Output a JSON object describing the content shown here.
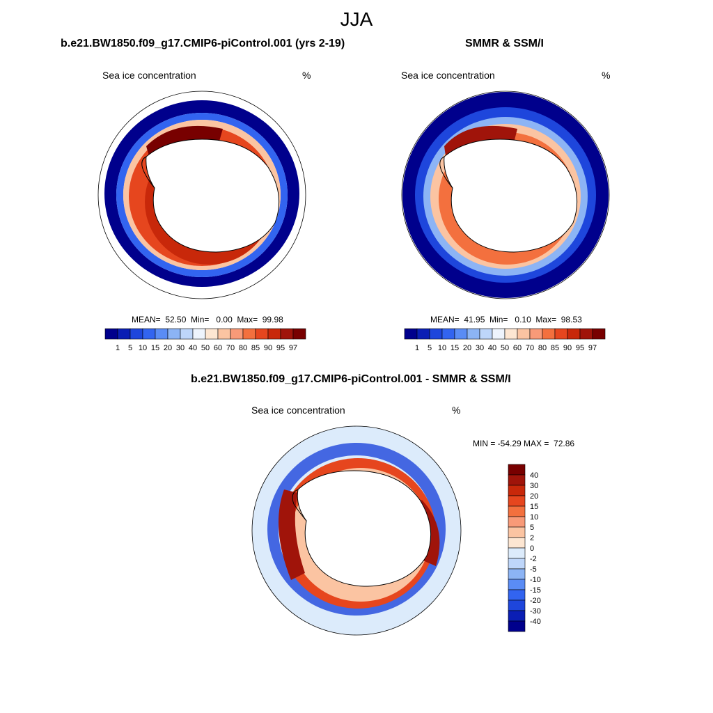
{
  "figure": {
    "season": "JJA"
  },
  "panels": [
    {
      "title": "b.e21.BW1850.f09_g17.CMIP6-piControl.001 (yrs 2-19)",
      "variable": "Sea ice concentration",
      "units": "%",
      "stats": "MEAN=  52.50  Min=   0.00  Max=  99.98"
    },
    {
      "title": "SMMR & SSM/I",
      "variable": "Sea ice concentration",
      "units": "%",
      "stats": "MEAN=  41.95  Min=   0.10  Max=  98.53"
    },
    {
      "title": "b.e21.BW1850.f09_g17.CMIP6-piControl.001 - SMMR & SSM/I",
      "variable": "Sea ice concentration",
      "units": "%",
      "stats": "MIN = -54.29 MAX =  72.86"
    }
  ],
  "colorbars": {
    "concentration": {
      "levels": [
        "1",
        "5",
        "10",
        "15",
        "20",
        "30",
        "40",
        "50",
        "60",
        "70",
        "80",
        "85",
        "90",
        "95",
        "97"
      ],
      "colors": [
        "#00008c",
        "#0a1eb4",
        "#1e46dc",
        "#3264f0",
        "#5a8cf5",
        "#8cb4f5",
        "#bed6fa",
        "#eef4fd",
        "#fde6d2",
        "#fbc4a2",
        "#f89a78",
        "#f3703e",
        "#e6461e",
        "#c8280a",
        "#a0140a",
        "#780000"
      ]
    },
    "difference": {
      "levels": [
        "40",
        "30",
        "20",
        "15",
        "10",
        "5",
        "2",
        "0",
        "-2",
        "-5",
        "-10",
        "-15",
        "-20",
        "-30",
        "-40"
      ],
      "colors": [
        "#780000",
        "#a0140a",
        "#c8280a",
        "#e6461e",
        "#f3703e",
        "#f89a78",
        "#fbc4a2",
        "#fde6d2",
        "#dcebfb",
        "#bed6fa",
        "#8cb4f5",
        "#5a8cf5",
        "#3264f0",
        "#1e46dc",
        "#0a1eb4",
        "#00008c"
      ]
    }
  }
}
